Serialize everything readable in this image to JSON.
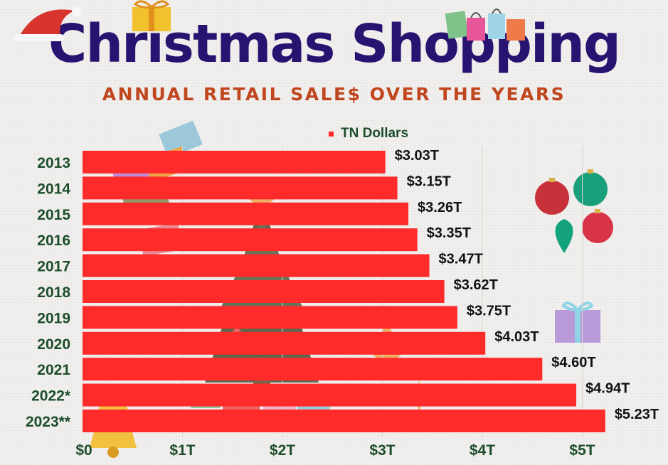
{
  "title": "Christmas Shopping",
  "subtitle": "ANNUAL RETAIL SALE$ OVER THE YEARS",
  "colors": {
    "bar": "#ff2a2a",
    "title": "#281470",
    "subtitle": "#c0461e",
    "category": "#1d4d2a",
    "axis_label": "#1d4d2a"
  },
  "chart_data": {
    "type": "bar",
    "orientation": "horizontal",
    "title": "Christmas Shopping",
    "subtitle": "ANNUAL RETAIL SALE$ OVER THE YEARS",
    "xlim": [
      0,
      5
    ],
    "grid": true,
    "legend_position": "top",
    "categories": [
      "2013",
      "2014",
      "2015",
      "2016",
      "2017",
      "2018",
      "2019",
      "2020",
      "2021",
      "2022*",
      "2023**"
    ],
    "series": [
      {
        "name": "TN Dollars",
        "values": [
          3.03,
          3.15,
          3.26,
          3.35,
          3.47,
          3.62,
          3.75,
          4.03,
          4.6,
          4.94,
          5.23
        ],
        "data_labels": [
          "$3.03T",
          "$3.15T",
          "$3.26T",
          "$3.35T",
          "$3.47T",
          "$3.62T",
          "$3.75T",
          "$4.03T",
          "$4.60T",
          "$4.94T",
          "$5.23T"
        ]
      }
    ],
    "x_ticks": [
      0,
      1,
      2,
      3,
      4,
      5
    ],
    "x_tick_labels": [
      "$0",
      "$1T",
      "$2T",
      "$3T",
      "$4T",
      "$5T"
    ]
  },
  "decorations": [
    "santa-hat-icon",
    "gift-box-icon",
    "shopping-bags-icon",
    "gift-stack-icon",
    "christmas-tree-icon",
    "ornaments-icon",
    "purple-gift-icon",
    "bell-icon",
    "sparkle-icon"
  ]
}
